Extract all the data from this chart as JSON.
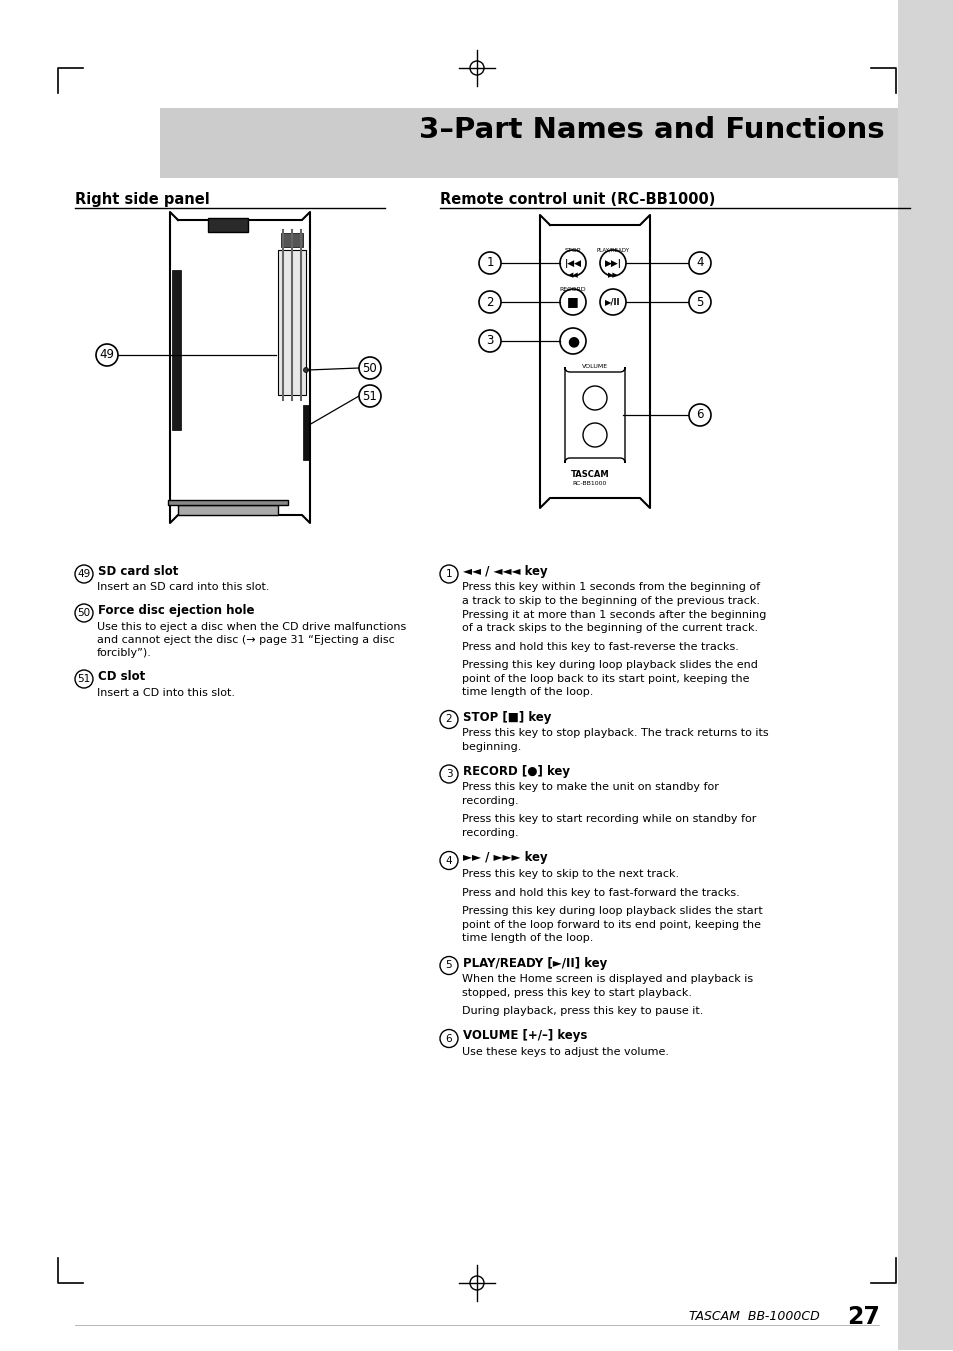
{
  "page_bg": "#ffffff",
  "header_bg": "#cccccc",
  "header_text": "3–Part Names and Functions",
  "section1_title": "Right side panel",
  "section2_title": "Remote control unit (RC-BB1000)",
  "footer_left": "TASCAM  BB-1000CD",
  "footer_num": "27",
  "items_left": [
    {
      "num": "49",
      "bold": "SD card slot",
      "lines": [
        "Insert an SD card into this slot."
      ]
    },
    {
      "num": "50",
      "bold": "Force disc ejection hole",
      "lines": [
        "Use this to eject a disc when the CD drive malfunctions",
        "and cannot eject the disc (→ page 31 “Ejecting a disc",
        "forcibly”)."
      ]
    },
    {
      "num": "51",
      "bold": "CD slot",
      "lines": [
        "Insert a CD into this slot."
      ]
    }
  ],
  "items_right": [
    {
      "num": "1",
      "bold": "◄◄ / ◄◄◄ key",
      "paras": [
        [
          "Press this key within 1 seconds from the beginning of",
          "a track to skip to the beginning of the previous track.",
          "Pressing it at more than 1 seconds after the beginning",
          "of a track skips to the beginning of the current track."
        ],
        [
          "Press and hold this key to fast-reverse the tracks."
        ],
        [
          "Pressing this key during loop playback slides the end",
          "point of the loop back to its start point, keeping the",
          "time length of the loop."
        ]
      ]
    },
    {
      "num": "2",
      "bold": "STOP [■] key",
      "paras": [
        [
          "Press this key to stop playback. The track returns to its",
          "beginning."
        ]
      ]
    },
    {
      "num": "3",
      "bold": "RECORD [●] key",
      "paras": [
        [
          "Press this key to make the unit on standby for",
          "recording."
        ],
        [
          "Press this key to start recording while on standby for",
          "recording."
        ]
      ]
    },
    {
      "num": "4",
      "bold": "►► / ►►► key",
      "paras": [
        [
          "Press this key to skip to the next track."
        ],
        [
          "Press and hold this key to fast-forward the tracks."
        ],
        [
          "Pressing this key during loop playback slides the start",
          "point of the loop forward to its end point, keeping the",
          "time length of the loop."
        ]
      ]
    },
    {
      "num": "5",
      "bold": "PLAY/READY [►/II] key",
      "paras": [
        [
          "When the Home screen is displayed and playback is",
          "stopped, press this key to start playback."
        ],
        [
          "During playback, press this key to pause it."
        ]
      ]
    },
    {
      "num": "6",
      "bold": "VOLUME [+/–] keys",
      "paras": [
        [
          "Use these keys to adjust the volume."
        ]
      ]
    }
  ]
}
